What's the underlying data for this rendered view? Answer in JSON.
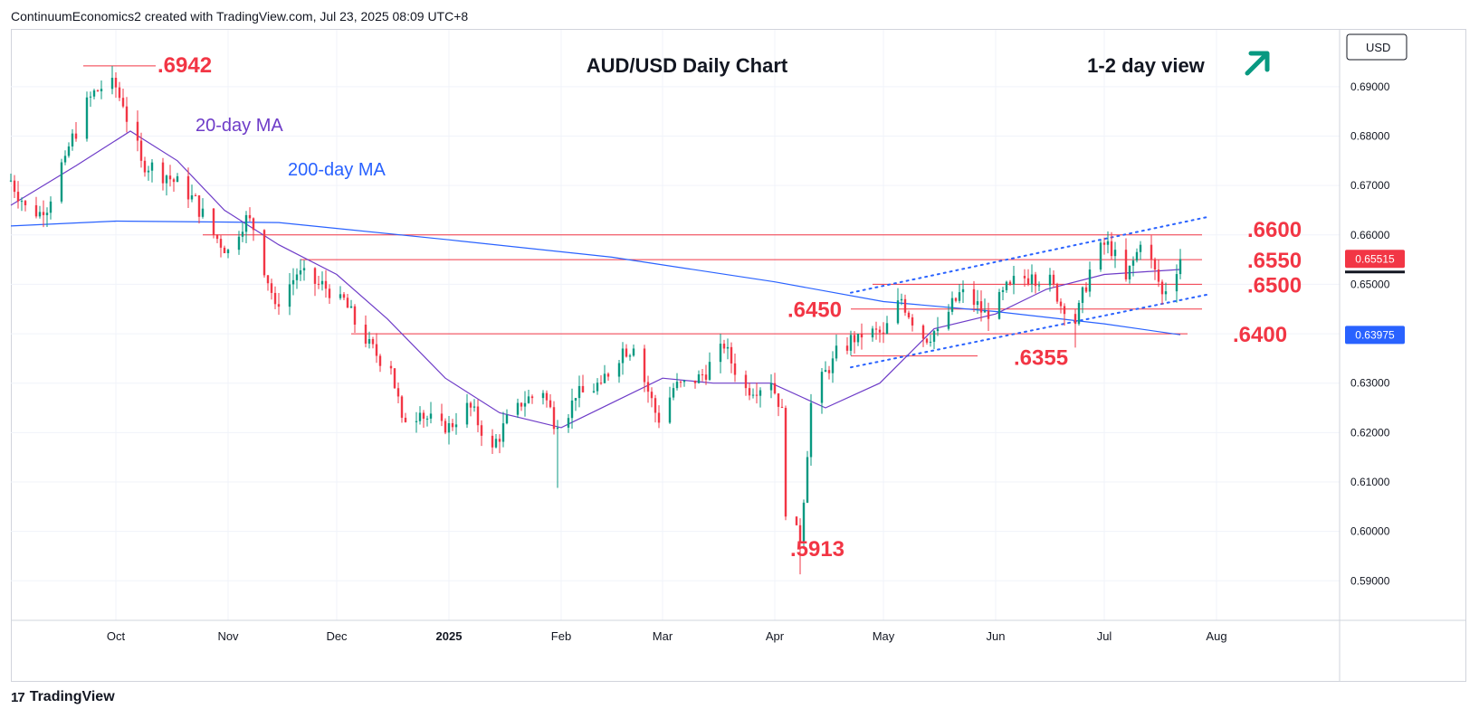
{
  "header": {
    "text": "ContinuumEconomics2 created with TradingView.com, Jul 23, 2025 08:09 UTC+8"
  },
  "footer": {
    "logo_text": "TradingView",
    "logo_icon": "tradingview-logo-icon"
  },
  "colors": {
    "up": "#089981",
    "down": "#f23645",
    "ma20": "#6e3cc8",
    "ma200": "#2962ff",
    "level": "#f23645",
    "channel": "#2962ff",
    "arrow": "#089981",
    "price_badge": "#f23645",
    "ma_badge": "#2962ff",
    "currency_box": "#131722"
  },
  "chart_data": {
    "type": "candlestick",
    "title": "AUD/USD Daily Chart",
    "subtitle": "1-2 day view",
    "view_direction_icon": "arrow-up-right-icon",
    "currency": "USD",
    "ylim": [
      0.582,
      0.7015
    ],
    "yticks": [
      "0.69000",
      "0.68000",
      "0.67000",
      "0.66000",
      "0.65000",
      "0.64000",
      "0.63000",
      "0.62000",
      "0.61000",
      "0.60000",
      "0.59000"
    ],
    "xaxis": {
      "start": "2024-09-02",
      "end": "2025-09-04",
      "ticks": [
        {
          "date": "2024-10-01",
          "label": "Oct"
        },
        {
          "date": "2024-11-01",
          "label": "Nov"
        },
        {
          "date": "2024-12-01",
          "label": "Dec"
        },
        {
          "date": "2025-01-01",
          "label": "2025"
        },
        {
          "date": "2025-02-01",
          "label": "Feb"
        },
        {
          "date": "2025-03-01",
          "label": "Mar"
        },
        {
          "date": "2025-04-01",
          "label": "Apr"
        },
        {
          "date": "2025-05-01",
          "label": "May"
        },
        {
          "date": "2025-06-01",
          "label": "Jun"
        },
        {
          "date": "2025-07-01",
          "label": "Jul"
        },
        {
          "date": "2025-08-01",
          "label": "Aug"
        }
      ]
    },
    "ohlc_anchors": [
      {
        "date": "2024-09-02",
        "close": 0.671
      },
      {
        "date": "2024-09-06",
        "close": 0.666
      },
      {
        "date": "2024-09-11",
        "close": 0.664
      },
      {
        "date": "2024-09-17",
        "close": 0.676
      },
      {
        "date": "2024-09-24",
        "close": 0.688
      },
      {
        "date": "2024-09-30",
        "close": 0.6918
      },
      {
        "date": "2024-10-03",
        "close": 0.686
      },
      {
        "date": "2024-10-08",
        "close": 0.675
      },
      {
        "date": "2024-10-15",
        "close": 0.672
      },
      {
        "date": "2024-10-22",
        "close": 0.668
      },
      {
        "date": "2024-10-28",
        "close": 0.66
      },
      {
        "date": "2024-11-01",
        "close": 0.657
      },
      {
        "date": "2024-11-06",
        "close": 0.664
      },
      {
        "date": "2024-11-08",
        "close": 0.661
      },
      {
        "date": "2024-11-14",
        "close": 0.646
      },
      {
        "date": "2024-11-20",
        "close": 0.652
      },
      {
        "date": "2024-11-26",
        "close": 0.65
      },
      {
        "date": "2024-12-02",
        "close": 0.648
      },
      {
        "date": "2024-12-09",
        "close": 0.638
      },
      {
        "date": "2024-12-16",
        "close": 0.633
      },
      {
        "date": "2024-12-19",
        "close": 0.623
      },
      {
        "date": "2024-12-24",
        "close": 0.624
      },
      {
        "date": "2024-12-31",
        "close": 0.62
      },
      {
        "date": "2025-01-06",
        "close": 0.626
      },
      {
        "date": "2025-01-13",
        "close": 0.617
      },
      {
        "date": "2025-01-20",
        "close": 0.626
      },
      {
        "date": "2025-01-27",
        "close": 0.628
      },
      {
        "date": "2025-01-31",
        "close": 0.621
      },
      {
        "date": "2025-02-05",
        "close": 0.627
      },
      {
        "date": "2025-02-12",
        "close": 0.63
      },
      {
        "date": "2025-02-18",
        "close": 0.637
      },
      {
        "date": "2025-02-21",
        "close": 0.637
      },
      {
        "date": "2025-02-28",
        "close": 0.622
      },
      {
        "date": "2025-03-04",
        "close": 0.629
      },
      {
        "date": "2025-03-10",
        "close": 0.63
      },
      {
        "date": "2025-03-18",
        "close": 0.637
      },
      {
        "date": "2025-03-24",
        "close": 0.629
      },
      {
        "date": "2025-03-31",
        "close": 0.63
      },
      {
        "date": "2025-04-03",
        "close": 0.625
      },
      {
        "date": "2025-04-04",
        "close": 0.603
      },
      {
        "date": "2025-04-08",
        "close": 0.598
      },
      {
        "date": "2025-04-11",
        "close": 0.626
      },
      {
        "date": "2025-04-17",
        "close": 0.635
      },
      {
        "date": "2025-04-24",
        "close": 0.64
      },
      {
        "date": "2025-05-01",
        "close": 0.64
      },
      {
        "date": "2025-05-06",
        "close": 0.647
      },
      {
        "date": "2025-05-12",
        "close": 0.639
      },
      {
        "date": "2025-05-16",
        "close": 0.641
      },
      {
        "date": "2025-05-23",
        "close": 0.649
      },
      {
        "date": "2025-05-30",
        "close": 0.643
      },
      {
        "date": "2025-06-05",
        "close": 0.65
      },
      {
        "date": "2025-06-11",
        "close": 0.652
      },
      {
        "date": "2025-06-17",
        "close": 0.65
      },
      {
        "date": "2025-06-20",
        "close": 0.644
      },
      {
        "date": "2025-06-23",
        "close": 0.642
      },
      {
        "date": "2025-06-27",
        "close": 0.653
      },
      {
        "date": "2025-07-01",
        "close": 0.658
      },
      {
        "date": "2025-07-04",
        "close": 0.657
      },
      {
        "date": "2025-07-07",
        "close": 0.651
      },
      {
        "date": "2025-07-11",
        "close": 0.658
      },
      {
        "date": "2025-07-15",
        "close": 0.653
      },
      {
        "date": "2025-07-17",
        "close": 0.648
      },
      {
        "date": "2025-07-22",
        "close": 0.6551
      }
    ],
    "ma20": [
      {
        "date": "2024-09-02",
        "value": 0.666
      },
      {
        "date": "2024-09-20",
        "value": 0.674
      },
      {
        "date": "2024-10-05",
        "value": 0.681
      },
      {
        "date": "2024-10-18",
        "value": 0.675
      },
      {
        "date": "2024-10-31",
        "value": 0.665
      },
      {
        "date": "2024-11-15",
        "value": 0.658
      },
      {
        "date": "2024-12-01",
        "value": 0.652
      },
      {
        "date": "2024-12-15",
        "value": 0.643
      },
      {
        "date": "2024-12-31",
        "value": 0.631
      },
      {
        "date": "2025-01-15",
        "value": 0.624
      },
      {
        "date": "2025-02-01",
        "value": 0.621
      },
      {
        "date": "2025-02-15",
        "value": 0.626
      },
      {
        "date": "2025-03-01",
        "value": 0.631
      },
      {
        "date": "2025-03-15",
        "value": 0.63
      },
      {
        "date": "2025-03-31",
        "value": 0.63
      },
      {
        "date": "2025-04-15",
        "value": 0.625
      },
      {
        "date": "2025-04-30",
        "value": 0.63
      },
      {
        "date": "2025-05-15",
        "value": 0.641
      },
      {
        "date": "2025-06-01",
        "value": 0.644
      },
      {
        "date": "2025-06-15",
        "value": 0.649
      },
      {
        "date": "2025-07-01",
        "value": 0.652
      },
      {
        "date": "2025-07-22",
        "value": 0.653
      }
    ],
    "ma200": [
      {
        "date": "2024-09-02",
        "value": 0.6618
      },
      {
        "date": "2024-10-01",
        "value": 0.6628
      },
      {
        "date": "2024-11-15",
        "value": 0.6625
      },
      {
        "date": "2025-01-01",
        "value": 0.659
      },
      {
        "date": "2025-02-15",
        "value": 0.6555
      },
      {
        "date": "2025-04-01",
        "value": 0.6505
      },
      {
        "date": "2025-05-01",
        "value": 0.6465
      },
      {
        "date": "2025-06-01",
        "value": 0.6445
      },
      {
        "date": "2025-07-01",
        "value": 0.642
      },
      {
        "date": "2025-07-22",
        "value": 0.6398
      }
    ],
    "levels": [
      {
        "label": ".6942",
        "value": 0.6942,
        "from": "2024-09-22",
        "to": "2024-10-12"
      },
      {
        "label": ".6600",
        "value": 0.66,
        "from": "2024-10-25",
        "to": "2025-07-28"
      },
      {
        "label": ".6550",
        "value": 0.655,
        "from": "2024-11-21",
        "to": "2025-07-28"
      },
      {
        "label": ".6500",
        "value": 0.65,
        "from": "2025-04-28",
        "to": "2025-07-28"
      },
      {
        "label": ".6450",
        "value": 0.645,
        "from": "2025-04-22",
        "to": "2025-07-28"
      },
      {
        "label": ".6400",
        "value": 0.64,
        "from": "2024-12-05",
        "to": "2025-07-24"
      },
      {
        "label": ".6355",
        "value": 0.6355,
        "from": "2025-04-22",
        "to": "2025-05-27"
      },
      {
        "label": ".5913",
        "value": 0.5913,
        "from": null,
        "to": null
      }
    ],
    "channel": [
      {
        "from": {
          "date": "2025-04-22",
          "value": 0.6483
        },
        "to": {
          "date": "2025-07-30",
          "value": 0.6637
        }
      },
      {
        "from": {
          "date": "2025-04-22",
          "value": 0.6332
        },
        "to": {
          "date": "2025-07-30",
          "value": 0.648
        }
      }
    ],
    "ma_labels": [
      {
        "text": "20-day MA",
        "date": "2024-10-25",
        "value": 0.681
      },
      {
        "text": "200-day MA",
        "date": "2024-11-20",
        "value": 0.67
      }
    ],
    "last_price": {
      "label": "0.65515",
      "value": 0.65515
    },
    "ma200_last": {
      "label": "0.63975",
      "value": 0.63975
    }
  }
}
